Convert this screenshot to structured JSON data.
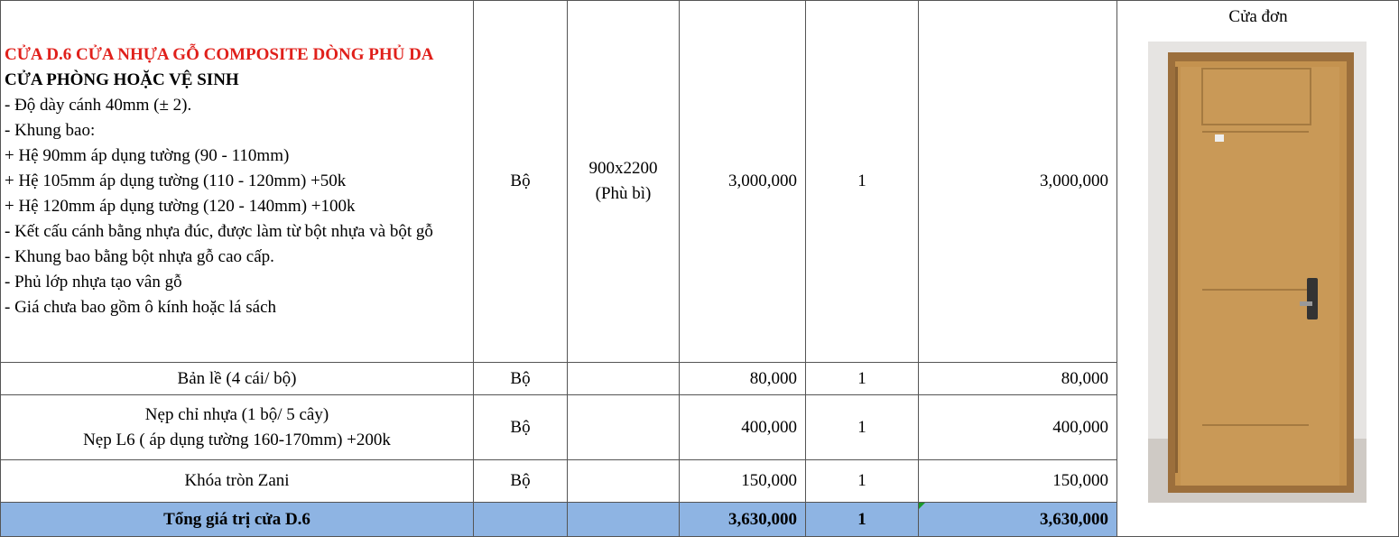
{
  "table": {
    "items": [
      {
        "description": {
          "title": "CỬA D.6 CỬA NHỰA GỖ COMPOSITE DÒNG PHỦ DA",
          "subtitle": "CỬA PHÒNG HOẶC VỆ SINH",
          "lines": [
            "- Độ dày cánh 40mm (± 2).",
            "- Khung bao:",
            "+ Hệ 90mm áp dụng tường (90 - 110mm)",
            "+ Hệ 105mm áp dụng tường (110 - 120mm) +50k",
            "+ Hệ 120mm áp dụng tường (120 - 140mm) +100k",
            "- Kết cấu cánh bằng nhựa đúc, được làm từ bột nhựa và bột gỗ",
            "- Khung bao bằng bột nhựa gỗ cao cấp.",
            "- Phủ lớp nhựa tạo vân gỗ",
            "- Giá chưa bao gồm ô kính hoặc lá sách"
          ]
        },
        "unit": "Bộ",
        "size": [
          "900x2200",
          "(Phù bì)"
        ],
        "unit_price": "3,000,000",
        "quantity": "1",
        "amount": "3,000,000"
      },
      {
        "name": [
          "Bản lề (4 cái/ bộ)"
        ],
        "unit": "Bộ",
        "unit_price": "80,000",
        "quantity": "1",
        "amount": "80,000"
      },
      {
        "name": [
          "Nẹp chỉ nhựa (1 bộ/ 5 cây)",
          "Nẹp L6 ( áp dụng tường 160-170mm) +200k"
        ],
        "unit": "Bộ",
        "unit_price": "400,000",
        "quantity": "1",
        "amount": "400,000"
      },
      {
        "name": [
          "Khóa tròn Zani"
        ],
        "unit": "Bộ",
        "unit_price": "150,000",
        "quantity": "1",
        "amount": "150,000"
      }
    ],
    "total": {
      "label": "Tổng giá trị cửa D.6",
      "unit_price": "3,630,000",
      "quantity": "1",
      "amount": "3,630,000"
    },
    "image": {
      "caption": "Cửa đơn"
    }
  }
}
